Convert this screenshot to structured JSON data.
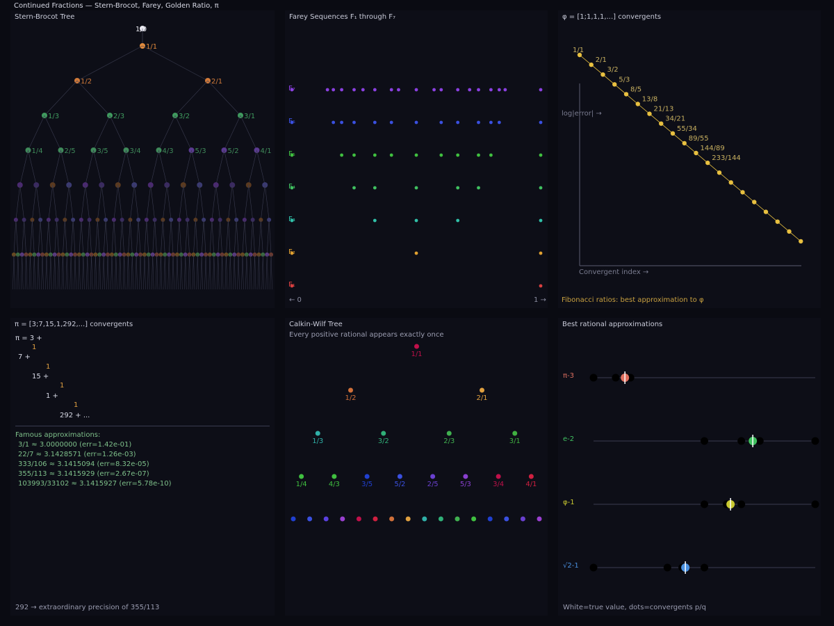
{
  "page_title": "Continued Fractions — Stern-Brocot, Farey, Golden Ratio, π",
  "stern_brocot": {
    "title": "Stern-Brocot Tree",
    "root_label": "1/0",
    "levels": [
      [
        "1/1"
      ],
      [
        "1/2",
        "2/1"
      ],
      [
        "1/3",
        "2/3",
        "3/2",
        "3/1"
      ],
      [
        "1/4",
        "2/5",
        "3/5",
        "3/4",
        "4/3",
        "5/3",
        "5/2",
        "4/1"
      ]
    ],
    "level_colors": [
      "#e08a3c",
      "#d07a3a",
      "#3f9a5e",
      "#3f8a5a"
    ]
  },
  "farey": {
    "title": "Farey Sequences F₁ through F₇",
    "axis_start": "← 0",
    "axis_end": "1 →",
    "colors": [
      "#d94040",
      "#e0a030",
      "#30c0a8",
      "#40c060",
      "#40c040",
      "#3a50e0",
      "#8a40e0"
    ],
    "row_labels": [
      "F₁",
      "F₂",
      "F₃",
      "F₄",
      "F₅",
      "F₆",
      "F₇"
    ]
  },
  "golden": {
    "title": "φ = [1;1,1,1,...] convergents",
    "ylabel": "log|error| →",
    "xlabel": "Convergent index →",
    "footer": "Fibonacci ratios: best approximation to φ",
    "labels": [
      "1/1",
      "2/1",
      "3/2",
      "5/3",
      "8/5",
      "13/8",
      "21/13",
      "34/21",
      "55/34",
      "89/55",
      "144/89",
      "233/144"
    ],
    "total_points": 20,
    "color": "#e8c040"
  },
  "pi_panel": {
    "title": "π = [3;7,15,1,292,...] convergents",
    "cf_lines": [
      "π = 3 +",
      "1",
      "7 +",
      "1",
      "15 +",
      "1",
      "1 +",
      "1",
      "292 + ..."
    ],
    "famous_title": "Famous approximations:",
    "famous": [
      "3/1 ≈ 3.0000000 (err=1.42e-01)",
      "22/7 ≈ 3.1428571 (err=1.26e-03)",
      "333/106 ≈ 3.1415094 (err=8.32e-05)",
      "355/113 ≈ 3.1415929 (err=2.67e-07)",
      "103993/33102 ≈ 3.1415927 (err=5.78e-10)"
    ],
    "footer": "292 → extraordinary precision of 355/113"
  },
  "calkin_wilf": {
    "title": "Calkin-Wilf Tree",
    "subtitle": "Every positive rational appears exactly once",
    "levels": [
      [
        {
          "label": "1/1",
          "color": "#c0104a"
        }
      ],
      [
        {
          "label": "1/2",
          "color": "#d0703a"
        },
        {
          "label": "2/1",
          "color": "#e0a040"
        }
      ],
      [
        {
          "label": "1/3",
          "color": "#30b0a8"
        },
        {
          "label": "3/2",
          "color": "#30b078"
        },
        {
          "label": "2/3",
          "color": "#40b050"
        },
        {
          "label": "3/1",
          "color": "#40b040"
        }
      ],
      [
        {
          "label": "1/4",
          "color": "#40c040"
        },
        {
          "label": "4/3",
          "color": "#40c040"
        },
        {
          "label": "3/5",
          "color": "#2040d0"
        },
        {
          "label": "5/2",
          "color": "#3a50e0"
        },
        {
          "label": "2/5",
          "color": "#6a40d0"
        },
        {
          "label": "5/3",
          "color": "#8a40d0"
        },
        {
          "label": "3/4",
          "color": "#c0104a"
        },
        {
          "label": "4/1",
          "color": "#d02040"
        }
      ]
    ],
    "last_row_colors": [
      "#2040d0",
      "#3a50e0",
      "#5a40e0",
      "#9a40d0",
      "#c0104a",
      "#d02040",
      "#d0703a",
      "#e0a040",
      "#30b0a8",
      "#30b078",
      "#40b050",
      "#40c040",
      "#2040d0",
      "#3a50e0",
      "#6a40d0",
      "#9a40d0"
    ]
  },
  "best_rational": {
    "title": "Best rational approximations",
    "footer": "White=true value, dots=convergents p/q",
    "rows": [
      {
        "label": "π-3",
        "color": "#e07060",
        "true_value": 0.14159,
        "convergents": [
          0,
          0.14286,
          0.1,
          0.16667
        ]
      },
      {
        "label": "e-2",
        "color": "#40c060",
        "true_value": 0.71828,
        "convergents": [
          0.5,
          0.66667,
          0.75,
          0.71429,
          1.0
        ]
      },
      {
        "label": "φ-1",
        "color": "#c8c830",
        "true_value": 0.61803,
        "convergents": [
          0.5,
          0.66667,
          0.6,
          1.0
        ]
      },
      {
        "label": "√2-1",
        "color": "#4a90e0",
        "true_value": 0.41421,
        "convergents": [
          0,
          0.33333,
          0.4,
          0.5
        ]
      }
    ]
  }
}
